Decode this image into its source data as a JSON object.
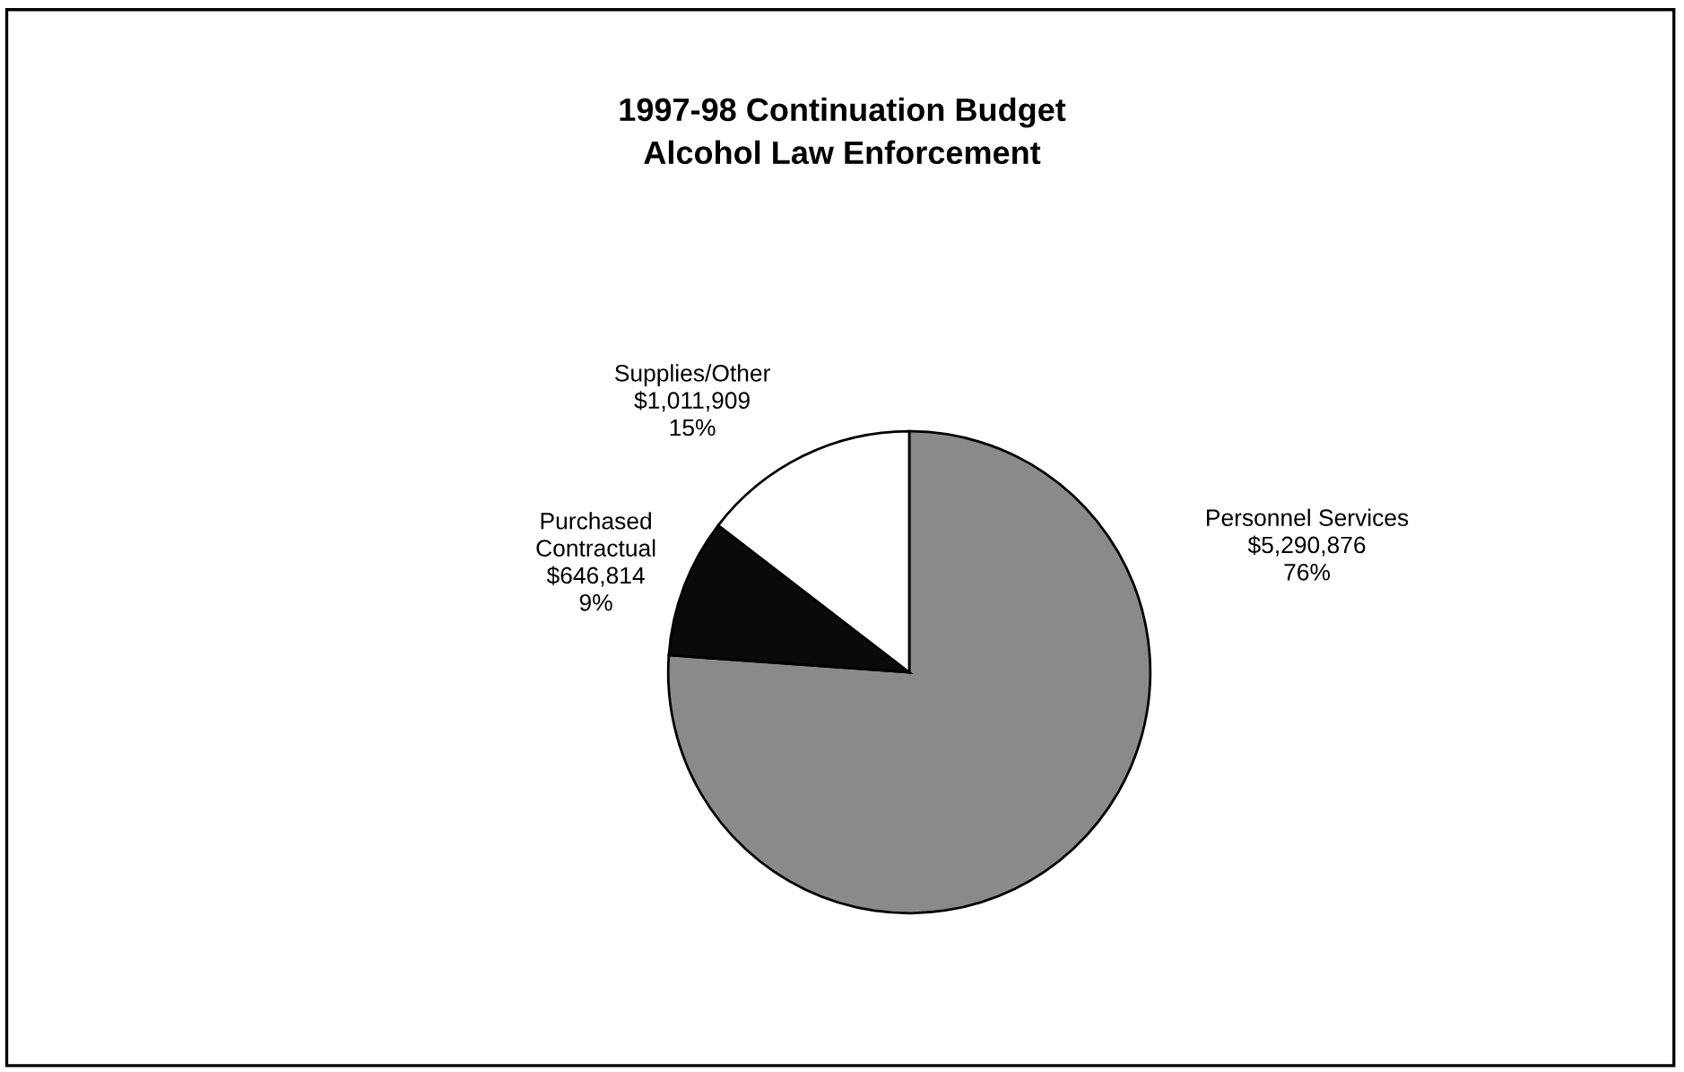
{
  "chart_data": {
    "type": "pie",
    "title": "1997-98 Continuation Budget",
    "subtitle": "Alcohol Law Enforcement",
    "categories": [
      "Personnel Services",
      "Purchased\nContractual",
      "Supplies/Other"
    ],
    "values": [
      5290876,
      646814,
      1011909
    ],
    "value_labels": [
      "$5,290,876\n76%",
      "$646,814\n9%",
      "$1,011,909\n15%"
    ],
    "colors": [
      "#8a8a8a",
      "#0a0a0a",
      "#ffffff"
    ],
    "legend": false
  }
}
